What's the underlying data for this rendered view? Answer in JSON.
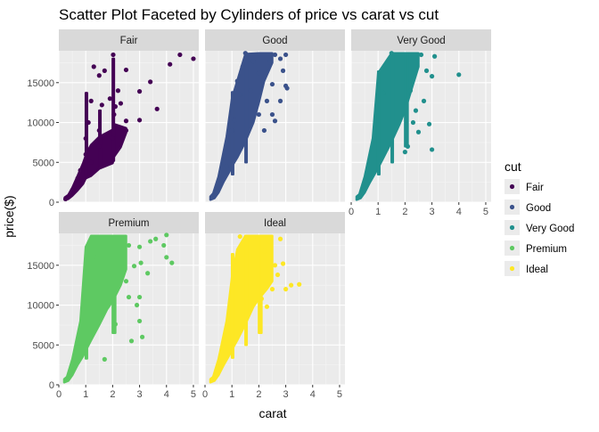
{
  "chart_data": {
    "type": "scatter",
    "title": "Scatter Plot Faceted by Cylinders of price vs carat vs cut",
    "xlabel": "carat",
    "ylabel": "price($)",
    "xlim": [
      0,
      5.2
    ],
    "ylim": [
      0,
      19000
    ],
    "x_ticks": [
      "0",
      "1",
      "2",
      "3",
      "4",
      "5"
    ],
    "y_ticks": [
      "0",
      "5000",
      "10000",
      "15000"
    ],
    "x_tick_values": [
      0,
      1,
      2,
      3,
      4,
      5
    ],
    "y_tick_values": [
      0,
      5000,
      10000,
      15000
    ],
    "grid": true,
    "legend": {
      "title": "cut",
      "placement": "right",
      "entries": [
        "Fair",
        "Good",
        "Very Good",
        "Premium",
        "Ideal"
      ]
    },
    "facets": [
      {
        "label": "Fair",
        "color": "#440154",
        "points": [
          [
            4.5,
            18500
          ],
          [
            5.0,
            18000
          ],
          [
            4.13,
            17300
          ],
          [
            3.4,
            15100
          ],
          [
            3.0,
            13900
          ],
          [
            3.65,
            11700
          ],
          [
            2.5,
            16600
          ],
          [
            2.02,
            18500
          ],
          [
            2.2,
            14000
          ],
          [
            1.5,
            15900
          ],
          [
            1.5,
            9000
          ],
          [
            2.5,
            10200
          ],
          [
            3.0,
            10300
          ],
          [
            2.3,
            12400
          ],
          [
            2.1,
            12000
          ],
          [
            2.05,
            11000
          ],
          [
            1.9,
            13000
          ],
          [
            1.7,
            16500
          ],
          [
            1.3,
            17000
          ],
          [
            1.2,
            12700
          ],
          [
            1.6,
            12200
          ],
          [
            1.1,
            10000
          ],
          [
            1.0,
            8000
          ],
          [
            1.0,
            6000
          ],
          [
            0.8,
            4000
          ],
          [
            0.7,
            3000
          ],
          [
            0.5,
            1500
          ],
          [
            0.35,
            700
          ],
          [
            0.25,
            400
          ],
          [
            1.2,
            5000
          ],
          [
            1.5,
            7000
          ],
          [
            2.0,
            8000
          ],
          [
            2.5,
            9000
          ],
          [
            2.0,
            6000
          ]
        ],
        "bands": [
          {
            "x": [
              0.22,
              0.35,
              0.5,
              0.7,
              0.9,
              1.0,
              1.2,
              1.5,
              2.0,
              2.05,
              2.3,
              2.5,
              2.5,
              2.05,
              2.0,
              1.5,
              1.2,
              1.05,
              0.9,
              0.7,
              0.5,
              0.35,
              0.22
            ],
            "y": [
              300,
              400,
              800,
              1500,
              2300,
              3000,
              3300,
              4200,
              4900,
              5700,
              6900,
              8700,
              9300,
              9800,
              9100,
              8200,
              7200,
              6300,
              4900,
              3300,
              1800,
              900,
              600
            ]
          },
          {
            "x": [
              1.0,
              1.05,
              1.05,
              1.0
            ],
            "y": [
              3200,
              3200,
              13700,
              13700
            ]
          },
          {
            "x": [
              2.0,
              2.05,
              2.05,
              2.0
            ],
            "y": [
              5200,
              5200,
              18000,
              18000
            ]
          },
          {
            "x": [
              1.5,
              1.55,
              1.55,
              1.5
            ],
            "y": [
              4500,
              4500,
              11500,
              11500
            ]
          }
        ]
      },
      {
        "label": "Good",
        "color": "#3b528b",
        "points": [
          [
            3.0,
            18500
          ],
          [
            2.8,
            18000
          ],
          [
            2.9,
            16500
          ],
          [
            3.0,
            14600
          ],
          [
            3.05,
            14300
          ],
          [
            2.8,
            12700
          ],
          [
            2.6,
            10200
          ],
          [
            2.3,
            12700
          ],
          [
            2.5,
            14800
          ],
          [
            2.0,
            16200
          ],
          [
            1.8,
            17700
          ],
          [
            1.5,
            18700
          ],
          [
            1.4,
            17000
          ],
          [
            1.3,
            13500
          ],
          [
            1.2,
            15200
          ],
          [
            1.1,
            10300
          ],
          [
            2.2,
            9000
          ],
          [
            2.0,
            11000
          ],
          [
            2.4,
            17500
          ],
          [
            2.6,
            18500
          ],
          [
            1.7,
            14000
          ],
          [
            1.0,
            9000
          ],
          [
            0.8,
            4500
          ],
          [
            2.5,
            11000
          ]
        ],
        "bands": [
          {
            "x": [
              0.2,
              0.35,
              0.5,
              0.7,
              0.9,
              1.0,
              1.2,
              1.5,
              1.8,
              2.0,
              2.2,
              2.5,
              2.5,
              2.0,
              1.5,
              1.0,
              0.8,
              0.5,
              0.3,
              0.2
            ],
            "y": [
              300,
              500,
              1200,
              2600,
              3800,
              4500,
              5600,
              7600,
              10000,
              12500,
              15200,
              17500,
              18700,
              18700,
              18600,
              13000,
              8200,
              3200,
              1100,
              700
            ]
          },
          {
            "x": [
              1.0,
              1.05,
              1.05,
              1.0
            ],
            "y": [
              3500,
              3500,
              13800,
              13800
            ]
          },
          {
            "x": [
              1.5,
              1.55,
              1.55,
              1.5
            ],
            "y": [
              5000,
              5000,
              18700,
              18700
            ]
          }
        ]
      },
      {
        "label": "Very Good",
        "color": "#21908d",
        "points": [
          [
            4.0,
            16000
          ],
          [
            3.0,
            15800
          ],
          [
            3.1,
            18300
          ],
          [
            2.9,
            9800
          ],
          [
            3.0,
            6600
          ],
          [
            2.7,
            12700
          ],
          [
            2.5,
            8800
          ],
          [
            2.8,
            16500
          ],
          [
            2.6,
            18500
          ],
          [
            1.5,
            18700
          ],
          [
            1.2,
            13700
          ],
          [
            2.3,
            10000
          ],
          [
            2.4,
            11500
          ],
          [
            2.2,
            14000
          ],
          [
            2.0,
            6300
          ],
          [
            2.1,
            7000
          ]
        ],
        "bands": [
          {
            "x": [
              0.2,
              0.35,
              0.5,
              0.7,
              0.9,
              1.0,
              1.2,
              1.5,
              1.8,
              2.0,
              2.3,
              2.5,
              2.5,
              2.0,
              1.5,
              1.0,
              0.8,
              0.5,
              0.3,
              0.2
            ],
            "y": [
              300,
              500,
              1200,
              2500,
              3700,
              4300,
              5600,
              7600,
              9800,
              11500,
              14800,
              17000,
              18700,
              18700,
              18700,
              16200,
              8000,
              3200,
              1000,
              700
            ]
          },
          {
            "x": [
              1.0,
              1.05,
              1.05,
              1.0
            ],
            "y": [
              3500,
              3500,
              16400,
              16400
            ]
          },
          {
            "x": [
              1.5,
              1.55,
              1.55,
              1.5
            ],
            "y": [
              5000,
              5000,
              18700,
              18700
            ]
          },
          {
            "x": [
              2.0,
              2.1,
              2.1,
              2.0
            ],
            "y": [
              7000,
              7000,
              18700,
              18700
            ]
          }
        ]
      },
      {
        "label": "Premium",
        "color": "#5ec962",
        "points": [
          [
            4.0,
            16000
          ],
          [
            4.0,
            18800
          ],
          [
            3.4,
            18000
          ],
          [
            3.05,
            15300
          ],
          [
            3.0,
            17300
          ],
          [
            3.3,
            14000
          ],
          [
            3.0,
            11000
          ],
          [
            2.9,
            10000
          ],
          [
            2.8,
            14900
          ],
          [
            2.6,
            17500
          ],
          [
            2.5,
            13000
          ],
          [
            2.6,
            11000
          ],
          [
            3.6,
            18300
          ],
          [
            3.9,
            17500
          ],
          [
            4.2,
            15300
          ],
          [
            2.1,
            7600
          ],
          [
            3.0,
            8000
          ],
          [
            3.1,
            6000
          ],
          [
            2.7,
            5500
          ],
          [
            1.7,
            3200
          ],
          [
            1.4,
            16000
          ],
          [
            1.2,
            13000
          ]
        ],
        "bands": [
          {
            "x": [
              0.2,
              0.35,
              0.5,
              0.7,
              0.9,
              1.0,
              1.2,
              1.5,
              1.8,
              2.0,
              2.3,
              2.5,
              2.5,
              2.0,
              1.5,
              1.2,
              1.0,
              0.8,
              0.5,
              0.3,
              0.2
            ],
            "y": [
              300,
              500,
              1200,
              2500,
              3600,
              4300,
              5600,
              7500,
              9500,
              10500,
              12500,
              14500,
              18700,
              18700,
              18700,
              18700,
              17300,
              8000,
              3200,
              1000,
              700
            ]
          },
          {
            "x": [
              1.0,
              1.05,
              1.05,
              1.0
            ],
            "y": [
              3300,
              3300,
              17000,
              17000
            ]
          },
          {
            "x": [
              2.0,
              2.1,
              2.1,
              2.0
            ],
            "y": [
              6500,
              6500,
              18700,
              18700
            ]
          }
        ]
      },
      {
        "label": "Ideal",
        "color": "#fde725",
        "points": [
          [
            3.5,
            12600
          ],
          [
            3.2,
            12500
          ],
          [
            3.0,
            12000
          ],
          [
            2.8,
            18300
          ],
          [
            2.9,
            15200
          ],
          [
            2.7,
            13800
          ],
          [
            2.5,
            12000
          ],
          [
            2.6,
            15000
          ],
          [
            2.3,
            9800
          ],
          [
            2.1,
            10800
          ],
          [
            2.4,
            18000
          ],
          [
            2.2,
            16800
          ],
          [
            1.3,
            18600
          ],
          [
            1.8,
            18500
          ],
          [
            1.2,
            14500
          ],
          [
            1.1,
            15500
          ]
        ],
        "bands": [
          {
            "x": [
              0.2,
              0.35,
              0.5,
              0.7,
              0.9,
              1.0,
              1.2,
              1.5,
              1.8,
              2.0,
              2.3,
              2.5,
              2.5,
              2.0,
              1.5,
              1.2,
              1.0,
              0.8,
              0.5,
              0.3,
              0.2
            ],
            "y": [
              300,
              500,
              1200,
              2500,
              3700,
              4400,
              5600,
              7600,
              9800,
              10800,
              12000,
              13000,
              18700,
              18700,
              18700,
              17000,
              13500,
              8000,
              3200,
              1000,
              700
            ]
          },
          {
            "x": [
              1.0,
              1.05,
              1.05,
              1.0
            ],
            "y": [
              3400,
              3400,
              16400,
              16400
            ]
          },
          {
            "x": [
              1.5,
              1.55,
              1.55,
              1.5
            ],
            "y": [
              5000,
              5000,
              18700,
              18700
            ]
          },
          {
            "x": [
              2.0,
              2.1,
              2.1,
              2.0
            ],
            "y": [
              6500,
              6500,
              18700,
              18700
            ]
          }
        ]
      }
    ]
  }
}
